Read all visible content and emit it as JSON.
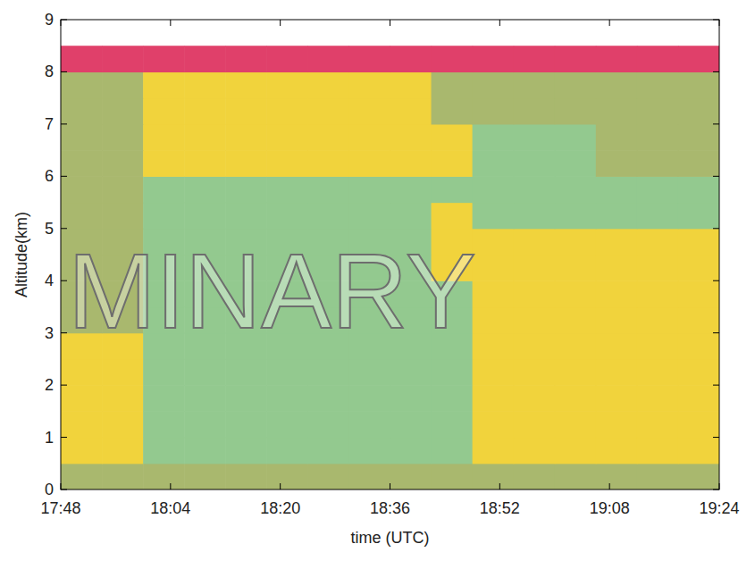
{
  "chart_data": {
    "type": "heatmap",
    "x_label": "time (UTC)",
    "y_label": "Altitude(km)",
    "watermark": "MINARY",
    "x": [
      1068,
      1074,
      1080,
      1086,
      1092,
      1098,
      1104,
      1110,
      1116,
      1122,
      1128,
      1134,
      1140,
      1146,
      1152,
      1158,
      1164
    ],
    "y": [
      0,
      0.5,
      1,
      1.5,
      2,
      2.5,
      3,
      3.5,
      4,
      4.5,
      5,
      5.5,
      6,
      6.5,
      7,
      7.5,
      8,
      8.5,
      9
    ],
    "z": [
      [
        0,
        0,
        0,
        0,
        0,
        0,
        0,
        0,
        0,
        0,
        0,
        0,
        0,
        0,
        0,
        0
      ],
      [
        2,
        2,
        1,
        1,
        1,
        1,
        1,
        1,
        1,
        1,
        2,
        2,
        2,
        2,
        2,
        2
      ],
      [
        2,
        2,
        1,
        1,
        1,
        1,
        1,
        1,
        1,
        1,
        2,
        2,
        2,
        2,
        2,
        2
      ],
      [
        2,
        2,
        1,
        1,
        1,
        1,
        1,
        1,
        1,
        1,
        2,
        2,
        2,
        2,
        2,
        2
      ],
      [
        2,
        2,
        1,
        1,
        1,
        1,
        1,
        1,
        1,
        1,
        2,
        2,
        2,
        2,
        2,
        2
      ],
      [
        2,
        2,
        1,
        1,
        1,
        1,
        1,
        1,
        1,
        1,
        2,
        2,
        2,
        2,
        2,
        2
      ],
      [
        0,
        0,
        1,
        1,
        1,
        1,
        1,
        1,
        1,
        1,
        2,
        2,
        2,
        2,
        2,
        2
      ],
      [
        0,
        0,
        1,
        1,
        1,
        1,
        1,
        1,
        1,
        1,
        2,
        2,
        2,
        2,
        2,
        2
      ],
      [
        0,
        0,
        1,
        1,
        1,
        1,
        1,
        1,
        1,
        2,
        2,
        2,
        2,
        2,
        2,
        2
      ],
      [
        0,
        0,
        1,
        1,
        1,
        1,
        1,
        1,
        1,
        2,
        2,
        2,
        2,
        2,
        2,
        2
      ],
      [
        0,
        0,
        1,
        1,
        1,
        1,
        1,
        1,
        1,
        2,
        1,
        1,
        1,
        1,
        1,
        1
      ],
      [
        0,
        0,
        1,
        1,
        1,
        1,
        1,
        1,
        1,
        1,
        1,
        1,
        1,
        1,
        1,
        1
      ],
      [
        0,
        0,
        2,
        2,
        2,
        2,
        2,
        2,
        2,
        2,
        1,
        1,
        1,
        0,
        0,
        0
      ],
      [
        0,
        0,
        2,
        2,
        2,
        2,
        2,
        2,
        2,
        2,
        1,
        1,
        1,
        0,
        0,
        0
      ],
      [
        0,
        0,
        2,
        2,
        2,
        2,
        2,
        2,
        2,
        0,
        0,
        0,
        0,
        0,
        0,
        0
      ],
      [
        0,
        0,
        2,
        2,
        2,
        2,
        2,
        2,
        2,
        0,
        0,
        0,
        0,
        0,
        0,
        0
      ],
      [
        3,
        3,
        3,
        3,
        3,
        3,
        3,
        3,
        3,
        3,
        3,
        3,
        3,
        3,
        3,
        3
      ],
      [
        null,
        null,
        null,
        null,
        null,
        null,
        null,
        null,
        null,
        null,
        null,
        null,
        null,
        null,
        null,
        null
      ]
    ],
    "colors": [
      "#a9b86e",
      "#93c98f",
      "#f1d33c",
      "#e0406a"
    ],
    "xlim": [
      1068,
      1164
    ],
    "ylim": [
      0,
      9
    ],
    "xticks": [
      {
        "value": 1068,
        "label": "17:48"
      },
      {
        "value": 1084,
        "label": "18:04"
      },
      {
        "value": 1100,
        "label": "18:20"
      },
      {
        "value": 1116,
        "label": "18:36"
      },
      {
        "value": 1132,
        "label": "18:52"
      },
      {
        "value": 1148,
        "label": "19:08"
      },
      {
        "value": 1164,
        "label": "19:24"
      }
    ],
    "yticks": [
      0,
      1,
      2,
      3,
      4,
      5,
      6,
      7,
      8,
      9
    ]
  }
}
